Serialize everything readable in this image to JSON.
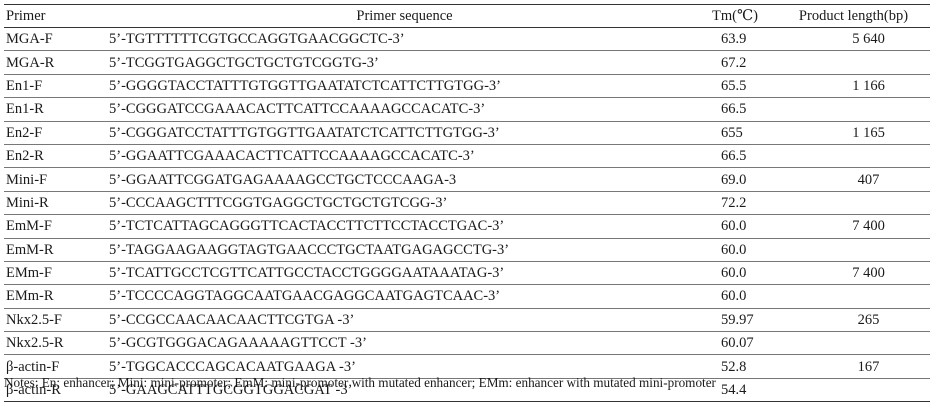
{
  "table": {
    "headers": {
      "primer": "Primer",
      "sequence": "Primer sequence",
      "tm": "Tm(℃)",
      "length": "Product length(bp)"
    },
    "rows": [
      {
        "primer": "MGA-F",
        "sequence": "5’-TGTTTTTTCGTGCCAGGTGAACGGCTC-3’",
        "tm": "63.9",
        "length": "5 640"
      },
      {
        "primer": "MGA-R",
        "sequence": "5’-TCGGTGAGGCTGCTGCTGTCGGTG-3’",
        "tm": "67.2",
        "length": ""
      },
      {
        "primer": "En1-F",
        "sequence": "5’-GGGGTACCTATTTGTGGTTGAATATCTCATTCTTGTGG-3’",
        "tm": "65.5",
        "length": "1 166"
      },
      {
        "primer": "En1-R",
        "sequence": "5’-CGGGATCCGAAACACTTCATTCCAAAAGCCACATC-3’",
        "tm": "66.5",
        "length": ""
      },
      {
        "primer": "En2-F",
        "sequence": "5’-CGGGATCCTATTTGTGGTTGAATATCTCATTCTTGTGG-3’",
        "tm": "655",
        "length": "1 165"
      },
      {
        "primer": "En2-R",
        "sequence": "5’-GGAATTCGAAACACTTCATTCCAAAAGCCACATC-3’",
        "tm": "66.5",
        "length": ""
      },
      {
        "primer": "Mini-F",
        "sequence": "5’-GGAATTCGGATGAGAAAAGCCTGCTCCCAAGA-3",
        "tm": "69.0",
        "length": "407"
      },
      {
        "primer": "Mini-R",
        "sequence": "5’-CCCAAGCTTTCGGTGAGGCTGCTGCTGTCGG-3’",
        "tm": "72.2",
        "length": ""
      },
      {
        "primer": "EmM-F",
        "sequence": "5’-TCTCATTAGCAGGGTTCACTACCTTCTTCCTACCTGAC-3’",
        "tm": "60.0",
        "length": "7 400"
      },
      {
        "primer": "EmM-R",
        "sequence": "5’-TAGGAAGAAGGTAGTGAACCCTGCTAATGAGAGCCTG-3’",
        "tm": "60.0",
        "length": ""
      },
      {
        "primer": "EMm-F",
        "sequence": "5’-TCATTGCCTCGTTCATTGCCTACCTGGGGAATAAATAG-3’",
        "tm": "60.0",
        "length": "7 400"
      },
      {
        "primer": "EMm-R",
        "sequence": "5’-TCCCCAGGTAGGCAATGAACGAGGCAATGAGTCAAC-3’",
        "tm": "60.0",
        "length": ""
      },
      {
        "primer": "Nkx2.5-F",
        "sequence": "5’-CCGCCAACAACAACTTCGTGA -3’",
        "tm": "59.97",
        "length": "265"
      },
      {
        "primer": "Nkx2.5-R",
        "sequence": "5’-GCGTGGGACAGAAAAAGTTCCT -3’",
        "tm": "60.07",
        "length": ""
      },
      {
        "primer": "β-actin-F",
        "sequence": "5’-TGGCACCCAGCACAATGAAGA -3’",
        "tm": "52.8",
        "length": "167"
      },
      {
        "primer": "β-actin-R",
        "sequence": "5’-GAAGCATTTGCGGTGGACGAT -3’",
        "tm": "54.4",
        "length": ""
      }
    ]
  },
  "notes": "Notes: En: enhancer; Mini: mini-promoter; EmM: mini-promoter with mutated enhancer; EMm: enhancer with mutated mini-promoter"
}
